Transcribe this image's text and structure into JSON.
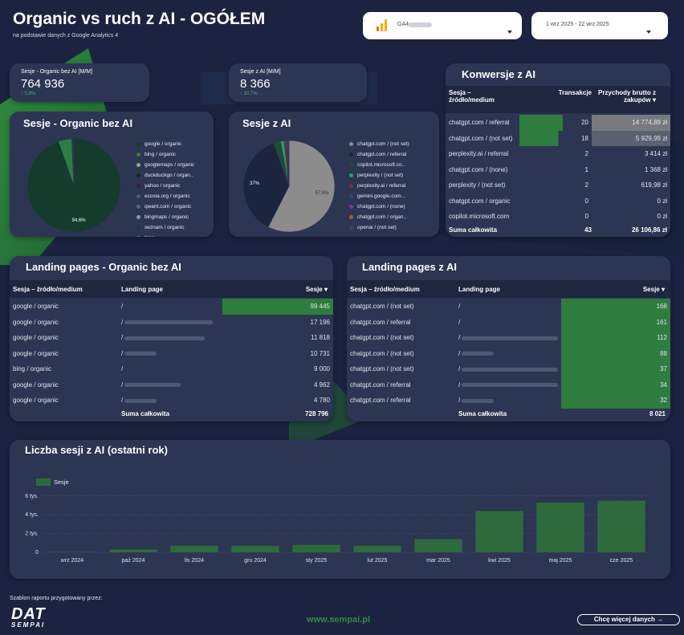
{
  "header": {
    "title": "Organic vs ruch z AI - OGÓŁEM",
    "subtitle": "na podstawie danych z Google Analytics 4",
    "account_select": {
      "label": "GA4"
    },
    "date_range": {
      "label": "1 wrz 2025 - 22 wrz 2025"
    }
  },
  "kpi": [
    {
      "label": "Sesje - Organic bez AI [M/M]",
      "value": "764 936",
      "delta": "↑ 5,8%"
    },
    {
      "label": "Sesje z AI [M/M]",
      "value": "8 366",
      "delta": "↑ 10,7%"
    }
  ],
  "pie_organic": {
    "title": "Sesje - Organic bez AI",
    "legend": [
      {
        "label": "google / organic",
        "color": "#143b2c"
      },
      {
        "label": "bing / organic",
        "color": "#2e7d44"
      },
      {
        "label": "googlemaps / organic",
        "color": "#7fb88c"
      },
      {
        "label": "duckduckgo / organ..",
        "color": "#1b2a1e"
      },
      {
        "label": "yahoo / organic",
        "color": "#4a1c2a"
      },
      {
        "label": "ecosia.org / organic",
        "color": "#3b6b5a"
      },
      {
        "label": "qwant.com / organic",
        "color": "#5a6375"
      },
      {
        "label": "bingmaps / organic",
        "color": "#8a93a6"
      },
      {
        "label": "seznam / organic",
        "color": "#2b3144"
      },
      {
        "label": "Inne",
        "color": "#2f7fe0"
      }
    ],
    "slice_labels": [
      "94,6%"
    ]
  },
  "pie_ai": {
    "title": "Sesje z AI",
    "legend": [
      {
        "label": "chatgpt.com / (not set)",
        "color": "#8c8c8c"
      },
      {
        "label": "chatgpt.com / referral",
        "color": "#1b2540"
      },
      {
        "label": "copilot.microsoft.co..",
        "color": "#1f4b38"
      },
      {
        "label": "perplexity / (not set)",
        "color": "#2a9a6e"
      },
      {
        "label": "perplexity.ai / referral",
        "color": "#8a2a2a"
      },
      {
        "label": "gemini.google.com...",
        "color": "#2f4a70"
      },
      {
        "label": "chatgpt.com / (none)",
        "color": "#7a3aa0"
      },
      {
        "label": "chatgpt.com / organ..",
        "color": "#a65b2a"
      },
      {
        "label": "openai / (not set)",
        "color": "#3b4460"
      }
    ],
    "slice_labels": [
      "57,5%",
      "37%"
    ]
  },
  "chart_data": [
    {
      "type": "pie",
      "title": "Sesje - Organic bez AI",
      "labels": [
        "google / organic",
        "bing / organic",
        "googlemaps / organic",
        "duckduckgo / organ..",
        "yahoo / organic",
        "ecosia.org / organic",
        "qwant.com / organic",
        "bingmaps / organic",
        "seznam / organic",
        "Inne"
      ],
      "values": [
        94.6,
        4.6,
        0.2,
        0.2,
        0.1,
        0.1,
        0.05,
        0.05,
        0.05,
        0.05
      ]
    },
    {
      "type": "pie",
      "title": "Sesje z AI",
      "labels": [
        "chatgpt.com / (not set)",
        "chatgpt.com / referral",
        "copilot.microsoft.co..",
        "perplexity / (not set)",
        "perplexity.ai / referral",
        "gemini.google.com...",
        "chatgpt.com / (none)",
        "chatgpt.com / organ..",
        "openai / (not set)"
      ],
      "values": [
        57.5,
        37.0,
        2.5,
        1.3,
        0.7,
        0.4,
        0.3,
        0.2,
        0.1
      ]
    },
    {
      "type": "bar",
      "title": "Liczba sesji z AI (ostatni rok)",
      "categories": [
        "wrz 2024",
        "paź 2024",
        "lis 2024",
        "gru 2024",
        "sty 2025",
        "lut 2025",
        "mar 2025",
        "kwi 2025",
        "maj 2025",
        "cze 2025"
      ],
      "series": [
        {
          "name": "Sesje",
          "values": [
            50,
            300,
            700,
            700,
            800,
            700,
            1400,
            4400,
            5300,
            5500
          ]
        }
      ],
      "yticks": [
        "0",
        "2 tys.",
        "4 tys.",
        "6 tys."
      ],
      "ylim": [
        0,
        6500
      ],
      "grid": true,
      "legend": "top-left",
      "color": "#2e6b3c"
    }
  ],
  "conversions": {
    "title": "Konwersje z AI",
    "headers": {
      "source": "Sesja – źródło/medium",
      "transactions": "Transakcje",
      "revenue": "Przychody brutto z zakupów"
    },
    "rows": [
      {
        "source": "chatgpt.com / referral",
        "transactions": "20",
        "revenue": "14 774,89 zł",
        "tx_frac": 1.0,
        "rev_frac": 1.0
      },
      {
        "source": "chatgpt.com / (not set)",
        "transactions": "18",
        "revenue": "5 929,99 zł",
        "tx_frac": 0.9,
        "rev_frac": 0.4
      },
      {
        "source": "perplexity.ai / referral",
        "transactions": "2",
        "revenue": "3 414 zł",
        "tx_frac": 0,
        "rev_frac": 0
      },
      {
        "source": "chatgpt.com / (none)",
        "transactions": "1",
        "revenue": "1 368 zł",
        "tx_frac": 0,
        "rev_frac": 0
      },
      {
        "source": "perplexity / (not set)",
        "transactions": "2",
        "revenue": "619,98 zł",
        "tx_frac": 0,
        "rev_frac": 0
      },
      {
        "source": "chatgpt.com / organic",
        "transactions": "0",
        "revenue": "0 zł",
        "tx_frac": 0,
        "rev_frac": 0
      },
      {
        "source": "copilot.microsoft.com",
        "transactions": "0",
        "revenue": "0 zł",
        "tx_frac": 0,
        "rev_frac": 0
      }
    ],
    "total": {
      "label": "Suma całkowita",
      "transactions": "43",
      "revenue": "26 106,86 zł"
    }
  },
  "lp_organic": {
    "title": "Landing pages - Organic bez AI",
    "headers": {
      "source": "Sesja – źródło/medium",
      "page": "Landing page",
      "sessions": "Sesje"
    },
    "rows": [
      {
        "source": "google / organic",
        "page": "/",
        "sessions": "99 445",
        "frac": 1.0
      },
      {
        "source": "google / organic",
        "page": "/",
        "sessions": "17 196",
        "frac": 0
      },
      {
        "source": "google / organic",
        "page": "/",
        "sessions": "11 818",
        "frac": 0
      },
      {
        "source": "google / organic",
        "page": "/",
        "sessions": "10 731",
        "frac": 0
      },
      {
        "source": "bing / organic",
        "page": "/",
        "sessions": "9 000",
        "frac": 0
      },
      {
        "source": "google / organic",
        "page": "/",
        "sessions": "4 962",
        "frac": 0
      },
      {
        "source": "google / organic",
        "page": "/",
        "sessions": "4 780",
        "frac": 0
      }
    ],
    "total": {
      "label": "Suma całkowita",
      "sessions": "728 796"
    }
  },
  "lp_ai": {
    "title": "Landing pages z AI",
    "headers": {
      "source": "Sesja – źródło/medium",
      "page": "Landing page",
      "sessions": "Sesje"
    },
    "rows": [
      {
        "source": "chatgpt.com / (not set)",
        "page": "/",
        "sessions": "168",
        "frac": 1.0
      },
      {
        "source": "chatgpt.com / referral",
        "page": "/",
        "sessions": "161",
        "frac": 1.0
      },
      {
        "source": "chatgpt.com / (not set)",
        "page": "/",
        "sessions": "112",
        "frac": 1.0
      },
      {
        "source": "chatgpt.com / (not set)",
        "page": "/",
        "sessions": "88",
        "frac": 1.0
      },
      {
        "source": "chatgpt.com / (not set)",
        "page": "/",
        "sessions": "37",
        "frac": 1.0
      },
      {
        "source": "chatgpt.com / referral",
        "page": "/",
        "sessions": "34",
        "frac": 1.0
      },
      {
        "source": "chatgpt.com / referral",
        "page": "/",
        "sessions": "32",
        "frac": 1.0
      }
    ],
    "total": {
      "label": "Suma całkowita",
      "sessions": "8 021"
    }
  },
  "bar_chart": {
    "title": "Liczba sesji z AI (ostatni rok)",
    "legend_label": "Sesje"
  },
  "footer": {
    "credit": "Szablon raportu przygotowany przez:",
    "logo_top": "DAT",
    "logo_bottom": "SEMPAI",
    "url": "www.sempai.pl",
    "cta": "Chcę więcej danych →"
  },
  "icons": {
    "dropdown": "chevron-down-icon",
    "sort": "sort-down-icon",
    "ga": "ga4-bar-icon"
  }
}
